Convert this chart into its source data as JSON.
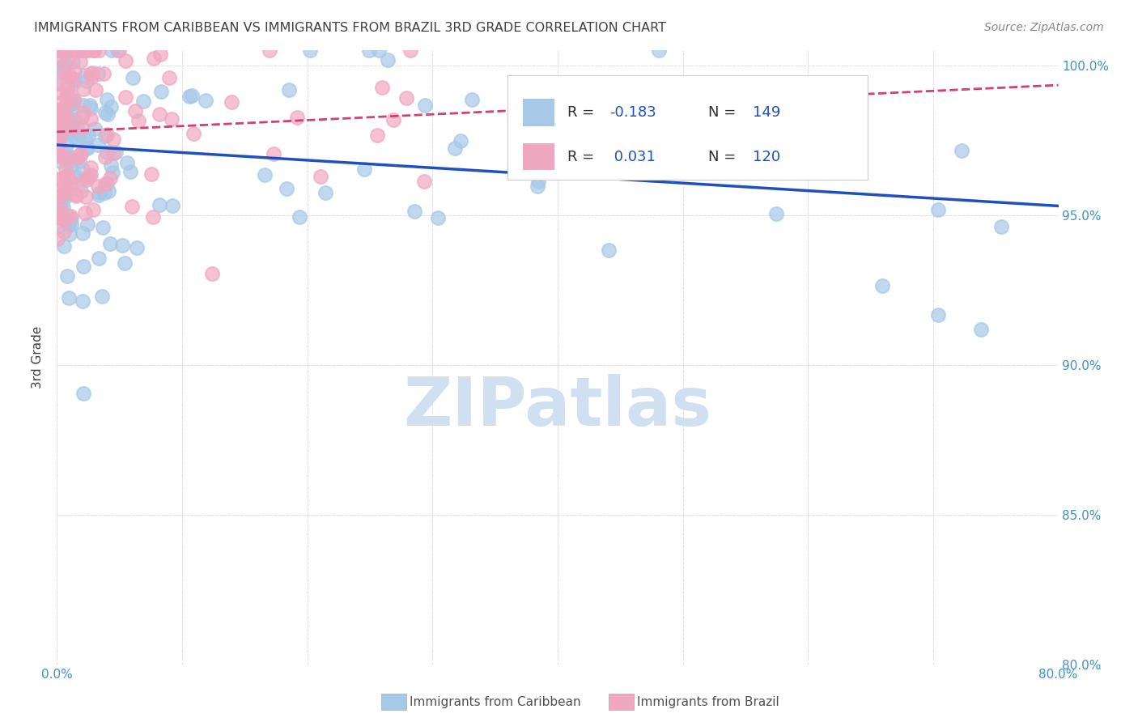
{
  "title": "IMMIGRANTS FROM CARIBBEAN VS IMMIGRANTS FROM BRAZIL 3RD GRADE CORRELATION CHART",
  "source": "Source: ZipAtlas.com",
  "ylabel_label": "3rd Grade",
  "legend_label_1": "Immigrants from Caribbean",
  "legend_label_2": "Immigrants from Brazil",
  "R_caribbean": -0.183,
  "N_caribbean": 149,
  "R_brazil": 0.031,
  "N_brazil": 120,
  "x_min": 0.0,
  "x_max": 0.8,
  "y_min": 0.8,
  "y_max": 1.005,
  "color_caribbean": "#a8c8e8",
  "color_brazil": "#f0a8c0",
  "color_line_caribbean": "#2050c0",
  "color_line_brazil": "#d04070",
  "watermark_color": "#d0e0f0",
  "grid_color": "#d8d8d8",
  "title_color": "#404040",
  "tick_label_color": "#4090d0",
  "background_color": "#ffffff",
  "legend_R_color": "#2050c0",
  "legend_N_color": "#2050c0"
}
